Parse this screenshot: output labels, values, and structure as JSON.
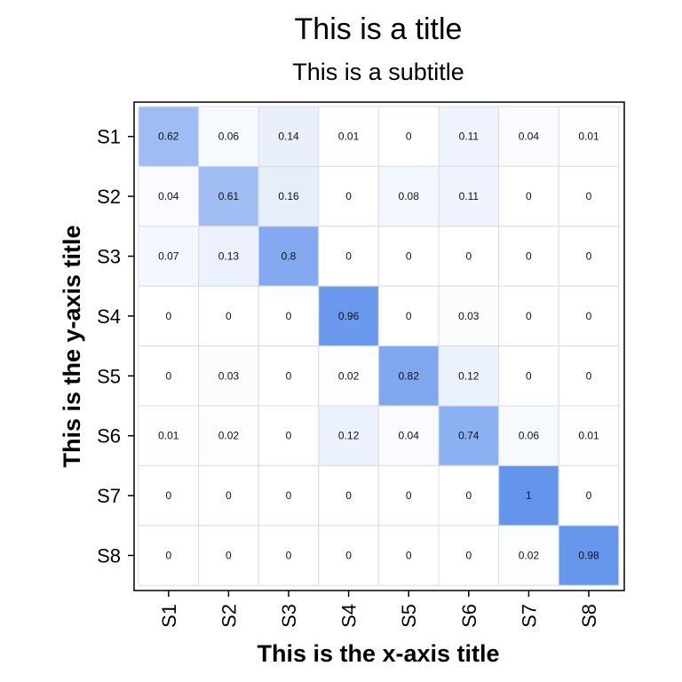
{
  "chart_data": {
    "type": "heatmap",
    "title": "This is a title",
    "subtitle": "This is a subtitle",
    "xlabel": "This is the x-axis title",
    "ylabel": "This is the y-axis title",
    "x_categories": [
      "S1",
      "S2",
      "S3",
      "S4",
      "S5",
      "S6",
      "S7",
      "S8"
    ],
    "y_categories": [
      "S1",
      "S2",
      "S3",
      "S4",
      "S5",
      "S6",
      "S7",
      "S8"
    ],
    "values": [
      [
        0.62,
        0.06,
        0.14,
        0.01,
        0,
        0.11,
        0.04,
        0.01
      ],
      [
        0.04,
        0.61,
        0.16,
        0,
        0.08,
        0.11,
        0,
        0
      ],
      [
        0.07,
        0.13,
        0.8,
        0,
        0,
        0,
        0,
        0
      ],
      [
        0,
        0,
        0,
        0.96,
        0,
        0.03,
        0,
        0
      ],
      [
        0,
        0.03,
        0,
        0.02,
        0.82,
        0.12,
        0,
        0
      ],
      [
        0.01,
        0.02,
        0,
        0.12,
        0.04,
        0.74,
        0.06,
        0.01
      ],
      [
        0,
        0,
        0,
        0,
        0,
        0,
        1,
        0
      ],
      [
        0,
        0,
        0,
        0,
        0,
        0,
        0.02,
        0.98
      ]
    ],
    "color_low": "#ffffff",
    "color_high": "#6495ed",
    "value_range": [
      0,
      1
    ],
    "legend": "none",
    "grid": true
  }
}
